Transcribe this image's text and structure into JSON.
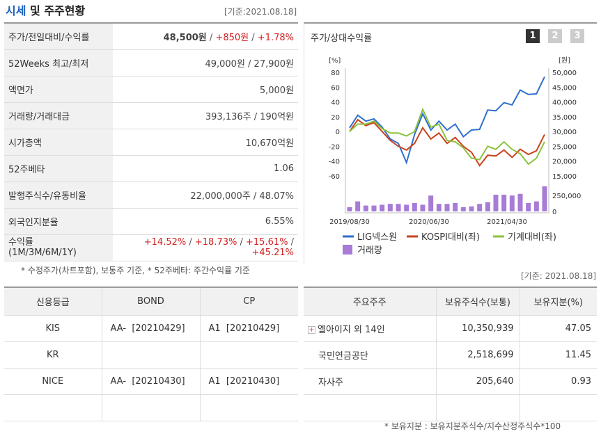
{
  "header": {
    "title_part1": "시세",
    "title_part2": " 및 주주현황",
    "base_date": "[기준:2021.08.18]"
  },
  "quote_rows": [
    {
      "label": "주가/전일대비/수익률",
      "v1": "48,500원",
      "v2": "+850원",
      "v3": "+1.78%"
    },
    {
      "label": "52Weeks 최고/최저",
      "value": "49,000원 / 27,900원"
    },
    {
      "label": "액면가",
      "value": "5,000원"
    },
    {
      "label": "거래량/거래대금",
      "value": "393,136주 / 190억원"
    },
    {
      "label": "시가총액",
      "value": "10,670억원"
    },
    {
      "label": "52주베타",
      "value": "1.06"
    },
    {
      "label": "발행주식수/유동비율",
      "value": "22,000,000주 / 48.07%"
    },
    {
      "label": "외국인지분율",
      "value": "6.55%"
    }
  ],
  "returns": {
    "label1": "수익률",
    "label2": "(1M/3M/6M/1Y)",
    "r1": "+14.52%",
    "r2": "+18.73%",
    "r3": "+15.61%",
    "r4": "+45.21%"
  },
  "quote_note": "* 수정주가(차트포함), 보통주 기준, * 52주베타: 주간수익률 기준",
  "chart_panel": {
    "title": "주가/상대수익률",
    "pages": [
      "1",
      "2",
      "3"
    ],
    "active_page": "1"
  },
  "chart_data": {
    "type": "line",
    "left_axis_label": "[%]",
    "right_axis_label": "[원]",
    "left_ticks": [
      "80",
      "60",
      "40",
      "20",
      "0",
      "-20",
      "-40",
      "-60"
    ],
    "right_ticks": [
      "50,000",
      "45,000",
      "40,000",
      "35,000",
      "30,000",
      "25,000",
      "20,000",
      "15,000"
    ],
    "volume_ticks": [
      "250,000",
      "0"
    ],
    "x_ticks": [
      "2019/08/30",
      "2020/06/30",
      "2021/04/30"
    ],
    "ylim_left": [
      -60,
      80
    ],
    "series": [
      {
        "name": "LIG넥스원",
        "color": "#2e6fcf",
        "values": [
          5,
          22,
          14,
          17,
          6,
          -10,
          -16,
          -42,
          -4,
          24,
          2,
          14,
          2,
          10,
          -7,
          2,
          3,
          29,
          28,
          39,
          36,
          56,
          50,
          51,
          74
        ]
      },
      {
        "name": "KOSPI대비(좌)",
        "color": "#c9431c",
        "values": [
          0,
          16,
          8,
          12,
          0,
          -12,
          -20,
          -25,
          -16,
          5,
          -10,
          -2,
          -16,
          -8,
          -20,
          -28,
          -46,
          -32,
          -33,
          -25,
          -35,
          -24,
          -31,
          -26,
          -4
        ]
      },
      {
        "name": "기계대비(좌)",
        "color": "#8cc23d",
        "values": [
          0,
          10,
          10,
          14,
          4,
          -2,
          -2,
          -6,
          0,
          30,
          6,
          10,
          -12,
          -14,
          -22,
          -36,
          -38,
          -20,
          -24,
          -14,
          -24,
          -30,
          -44,
          -36,
          -14
        ]
      }
    ],
    "volume": {
      "name": "거래량",
      "color": "#a77bd6",
      "values": [
        5,
        12,
        7,
        7,
        8,
        9,
        9,
        8,
        10,
        8,
        19,
        9,
        9,
        10,
        5,
        6,
        9,
        11,
        20,
        20,
        19,
        21,
        10,
        12,
        30
      ]
    }
  },
  "credit_table": {
    "headers": [
      "신용등급",
      "BOND",
      "CP"
    ],
    "rows": [
      {
        "agency": "KIS",
        "bond": "AA-  [20210429]",
        "cp": "A1  [20210429]"
      },
      {
        "agency": "KR",
        "bond": "",
        "cp": ""
      },
      {
        "agency": "NICE",
        "bond": "AA-  [20210430]",
        "cp": "A1  [20210430]"
      },
      {
        "agency": "",
        "bond": "",
        "cp": ""
      }
    ]
  },
  "share_base_date": "[기준: 2021.08.18]",
  "share_table": {
    "headers": [
      "주요주주",
      "보유주식수(보통)",
      "보유지분(%)"
    ],
    "rows": [
      {
        "holder": "엘아이지 외 14인",
        "shares": "10,350,939",
        "pct": "47.05"
      },
      {
        "holder": "국민연금공단",
        "shares": "2,518,699",
        "pct": "11.45"
      },
      {
        "holder": "자사주",
        "shares": "205,640",
        "pct": "0.93"
      },
      {
        "holder": "",
        "shares": "",
        "pct": ""
      }
    ]
  },
  "share_note": "* 보유지분 : 보유지분주식수/지수산정주식수*100"
}
